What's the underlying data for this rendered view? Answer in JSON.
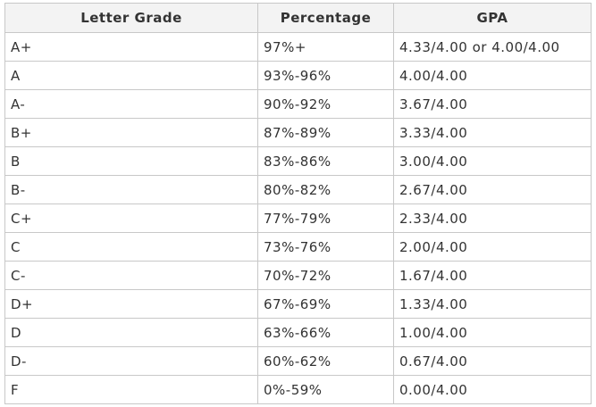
{
  "table": {
    "header": [
      "Letter Grade",
      "Percentage",
      "GPA"
    ],
    "rows": [
      [
        "A+",
        "97%+",
        "4.33/4.00 or 4.00/4.00"
      ],
      [
        "A",
        "93%-96%",
        "4.00/4.00"
      ],
      [
        "A-",
        "90%-92%",
        "3.67/4.00"
      ],
      [
        "B+",
        "87%-89%",
        "3.33/4.00"
      ],
      [
        "B",
        "83%-86%",
        "3.00/4.00"
      ],
      [
        "B-",
        "80%-82%",
        "2.67/4.00"
      ],
      [
        "C+",
        "77%-79%",
        "2.33/4.00"
      ],
      [
        "C",
        "73%-76%",
        "2.00/4.00"
      ],
      [
        "C-",
        "70%-72%",
        "1.67/4.00"
      ],
      [
        "D+",
        "67%-69%",
        "1.33/4.00"
      ],
      [
        "D",
        "63%-66%",
        "1.00/4.00"
      ],
      [
        "D-",
        "60%-62%",
        "0.67/4.00"
      ],
      [
        "F",
        "0%-59%",
        "0.00/4.00"
      ]
    ]
  }
}
